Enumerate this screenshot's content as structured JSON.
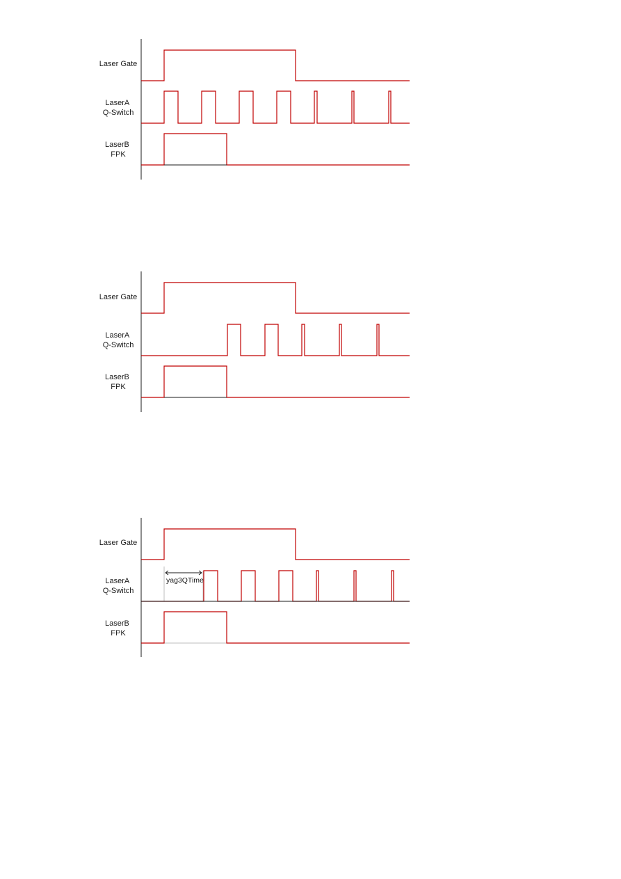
{
  "colors": {
    "signal": "#c00000",
    "axis": "#1a1a1a",
    "guide": "#bdbdbd"
  },
  "diagrams": [
    {
      "signals": [
        {
          "lines": [
            "Laser Gate"
          ]
        },
        {
          "lines": [
            "LaserA",
            "Q-Switch"
          ]
        },
        {
          "lines": [
            "LaserB",
            "FPK"
          ]
        }
      ]
    },
    {
      "signals": [
        {
          "lines": [
            "Laser Gate"
          ]
        },
        {
          "lines": [
            "LaserA",
            "Q-Switch"
          ]
        },
        {
          "lines": [
            "LaserB",
            "FPK"
          ]
        }
      ]
    },
    {
      "signals": [
        {
          "lines": [
            "Laser Gate"
          ]
        },
        {
          "lines": [
            "LaserA",
            "Q-Switch"
          ]
        },
        {
          "lines": [
            "LaserB",
            "FPK"
          ]
        }
      ],
      "annotation": {
        "text": "yag3QTime"
      }
    }
  ]
}
